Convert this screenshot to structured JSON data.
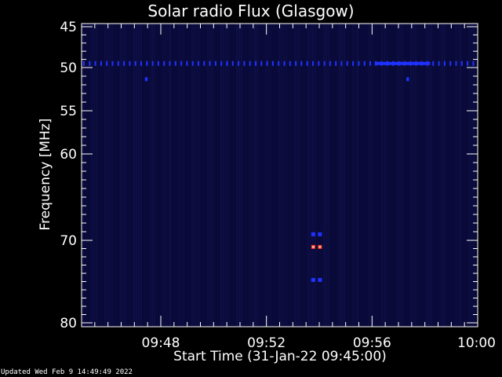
{
  "chart_data": {
    "type": "heatmap",
    "title": "Solar radio Flux (Glasgow)",
    "xlabel": "Start Time (31-Jan-22 09:45:00)",
    "ylabel": "Frequency [MHz]",
    "x_tick_labels": [
      "09:48",
      "09:52",
      "09:56",
      "10:00"
    ],
    "x_ticks_minutes_after_start": [
      3,
      7,
      11,
      15
    ],
    "xlim_minutes_after_start": [
      0,
      15
    ],
    "y_tick_labels": [
      "45",
      "50",
      "55",
      "60",
      "70",
      "80"
    ],
    "y_ticks": [
      45,
      50,
      55,
      60,
      70,
      80
    ],
    "ylim": [
      45,
      80
    ],
    "y_axis_reversed": true,
    "y_scale": "nonlinear",
    "grid": false,
    "colors": {
      "background": "#000000",
      "axes": "#ffffff",
      "low_intensity": "#0a0a3a",
      "medium_intensity": "#1e32ff",
      "high_intensity": "#ff3020"
    },
    "features": [
      {
        "name": "interference band",
        "frequency_mhz": 49.5,
        "minutes": [
          0,
          15
        ],
        "intensity": "medium"
      },
      {
        "name": "interference band",
        "frequency_mhz": 49.5,
        "minutes": [
          11.1,
          13.2
        ],
        "intensity": "medium"
      },
      {
        "name": "spot",
        "frequency_mhz": 51.3,
        "minutes": [
          2.4,
          2.5
        ],
        "intensity": "medium"
      },
      {
        "name": "spot",
        "frequency_mhz": 51.3,
        "minutes": [
          12.3,
          12.4
        ],
        "intensity": "medium"
      },
      {
        "name": "burst",
        "frequency_mhz": 69.3,
        "minutes": [
          8.7,
          9.1
        ],
        "intensity": "medium"
      },
      {
        "name": "burst",
        "frequency_mhz": 70.8,
        "minutes": [
          8.7,
          9.1
        ],
        "intensity": "high"
      },
      {
        "name": "burst",
        "frequency_mhz": 74.8,
        "minutes": [
          8.7,
          9.1
        ],
        "intensity": "medium"
      }
    ]
  },
  "footer": "Updated Wed Feb  9 14:49:49 2022"
}
